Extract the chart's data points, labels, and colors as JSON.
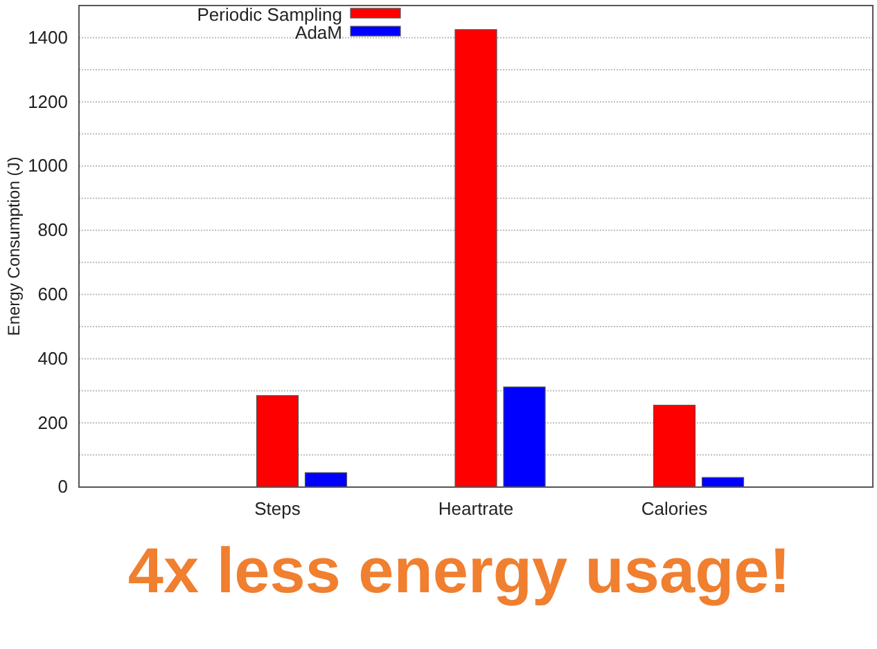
{
  "chart_data": {
    "type": "bar",
    "categories": [
      "Steps",
      "Heartrate",
      "Calories"
    ],
    "series": [
      {
        "name": "Periodic Sampling",
        "color": "#ff0000",
        "values": [
          285,
          1425,
          255
        ]
      },
      {
        "name": "AdaM",
        "color": "#0000ff",
        "values": [
          45,
          312,
          30
        ]
      }
    ],
    "ylabel": "Energy Consumption (J)",
    "ylim": [
      0,
      1500
    ],
    "yticks": [
      0,
      {
        "value": 100,
        "label": null
      },
      200,
      {
        "value": 300,
        "label": null
      },
      400,
      {
        "value": 500,
        "label": null
      },
      600,
      {
        "value": 700,
        "label": null
      },
      800,
      {
        "value": 900,
        "label": null
      },
      1000,
      {
        "value": 1100,
        "label": null
      },
      1200,
      {
        "value": 1300,
        "label": null
      },
      1400
    ],
    "grid": "y",
    "legend": "top left",
    "annotations": [
      "4x less energy usage!"
    ]
  }
}
